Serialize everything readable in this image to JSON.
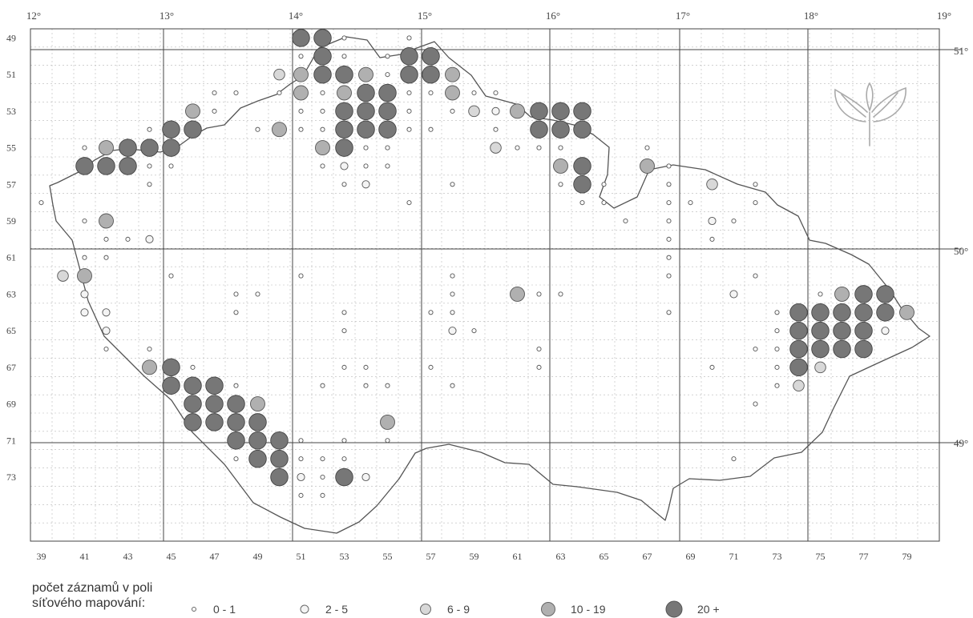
{
  "map": {
    "longitude_labels": [
      "12°",
      "13°",
      "14°",
      "15°",
      "16°",
      "17°",
      "18°",
      "19°"
    ],
    "latitude_labels": [
      "51°",
      "50°",
      "49°"
    ],
    "row_labels": [
      "49",
      "51",
      "53",
      "55",
      "57",
      "59",
      "61",
      "63",
      "65",
      "67",
      "69",
      "71",
      "73"
    ],
    "column_labels": [
      "39",
      "41",
      "43",
      "45",
      "47",
      "49",
      "51",
      "53",
      "55",
      "57",
      "59",
      "61",
      "63",
      "65",
      "67",
      "69",
      "71",
      "73",
      "75",
      "77",
      "79"
    ],
    "logo_icon": "leaf-plant-icon"
  },
  "legend": {
    "caption_line1": "počet záznamů v poli",
    "caption_line2": "síťového mapování:",
    "classes": [
      {
        "label": "0 - 1",
        "color": "#ffffff"
      },
      {
        "label": "2 - 5",
        "color": "#f4f4f4"
      },
      {
        "label": "6 - 9",
        "color": "#d8d8d8"
      },
      {
        "label": "10 - 19",
        "color": "#b0b0b0"
      },
      {
        "label": "20 +",
        "color": "#777777"
      }
    ]
  },
  "records": [
    [
      51,
      49,
      4
    ],
    [
      52,
      49,
      4
    ],
    [
      53,
      49,
      0
    ],
    [
      56,
      49,
      0
    ],
    [
      51,
      50,
      0
    ],
    [
      52,
      50,
      4
    ],
    [
      53,
      50,
      0
    ],
    [
      55,
      50,
      0
    ],
    [
      56,
      50,
      4
    ],
    [
      57,
      50,
      4
    ],
    [
      50,
      51,
      2
    ],
    [
      51,
      51,
      3
    ],
    [
      52,
      51,
      4
    ],
    [
      53,
      51,
      4
    ],
    [
      54,
      51,
      3
    ],
    [
      55,
      51,
      0
    ],
    [
      56,
      51,
      4
    ],
    [
      57,
      51,
      4
    ],
    [
      58,
      51,
      3
    ],
    [
      47,
      52,
      0
    ],
    [
      48,
      52,
      0
    ],
    [
      50,
      52,
      0
    ],
    [
      51,
      52,
      3
    ],
    [
      52,
      52,
      0
    ],
    [
      53,
      52,
      3
    ],
    [
      54,
      52,
      4
    ],
    [
      55,
      52,
      4
    ],
    [
      56,
      52,
      0
    ],
    [
      57,
      52,
      0
    ],
    [
      58,
      52,
      3
    ],
    [
      59,
      52,
      0
    ],
    [
      60,
      52,
      0
    ],
    [
      46,
      53,
      3
    ],
    [
      47,
      53,
      0
    ],
    [
      51,
      53,
      0
    ],
    [
      52,
      53,
      0
    ],
    [
      53,
      53,
      4
    ],
    [
      54,
      53,
      4
    ],
    [
      55,
      53,
      4
    ],
    [
      56,
      53,
      0
    ],
    [
      58,
      53,
      0
    ],
    [
      59,
      53,
      2
    ],
    [
      60,
      53,
      1
    ],
    [
      61,
      53,
      3
    ],
    [
      62,
      53,
      4
    ],
    [
      63,
      53,
      4
    ],
    [
      64,
      53,
      4
    ],
    [
      44,
      54,
      0
    ],
    [
      45,
      54,
      4
    ],
    [
      46,
      54,
      4
    ],
    [
      49,
      54,
      0
    ],
    [
      50,
      54,
      3
    ],
    [
      51,
      54,
      0
    ],
    [
      52,
      54,
      0
    ],
    [
      53,
      54,
      4
    ],
    [
      54,
      54,
      4
    ],
    [
      55,
      54,
      4
    ],
    [
      56,
      54,
      0
    ],
    [
      57,
      54,
      0
    ],
    [
      60,
      54,
      0
    ],
    [
      62,
      54,
      4
    ],
    [
      63,
      54,
      4
    ],
    [
      64,
      54,
      4
    ],
    [
      41,
      55,
      0
    ],
    [
      42,
      55,
      3
    ],
    [
      43,
      55,
      4
    ],
    [
      44,
      55,
      4
    ],
    [
      45,
      55,
      4
    ],
    [
      52,
      55,
      3
    ],
    [
      53,
      55,
      4
    ],
    [
      54,
      55,
      0
    ],
    [
      55,
      55,
      0
    ],
    [
      60,
      55,
      2
    ],
    [
      61,
      55,
      0
    ],
    [
      62,
      55,
      0
    ],
    [
      63,
      55,
      0
    ],
    [
      67,
      55,
      0
    ],
    [
      41,
      56,
      4
    ],
    [
      42,
      56,
      4
    ],
    [
      43,
      56,
      4
    ],
    [
      44,
      56,
      0
    ],
    [
      45,
      56,
      0
    ],
    [
      52,
      56,
      0
    ],
    [
      53,
      56,
      1
    ],
    [
      54,
      56,
      0
    ],
    [
      55,
      56,
      0
    ],
    [
      63,
      56,
      3
    ],
    [
      64,
      56,
      4
    ],
    [
      67,
      56,
      3
    ],
    [
      68,
      56,
      0
    ],
    [
      44,
      57,
      0
    ],
    [
      53,
      57,
      0
    ],
    [
      54,
      57,
      1
    ],
    [
      58,
      57,
      0
    ],
    [
      63,
      57,
      0
    ],
    [
      64,
      57,
      4
    ],
    [
      65,
      57,
      0
    ],
    [
      68,
      57,
      0
    ],
    [
      70,
      57,
      2
    ],
    [
      72,
      57,
      0
    ],
    [
      39,
      58,
      0
    ],
    [
      56,
      58,
      0
    ],
    [
      64,
      58,
      0
    ],
    [
      65,
      58,
      0
    ],
    [
      68,
      58,
      0
    ],
    [
      69,
      58,
      0
    ],
    [
      72,
      58,
      0
    ],
    [
      41,
      59,
      0
    ],
    [
      42,
      59,
      3
    ],
    [
      66,
      59,
      0
    ],
    [
      68,
      59,
      0
    ],
    [
      70,
      59,
      1
    ],
    [
      71,
      59,
      0
    ],
    [
      42,
      60,
      0
    ],
    [
      43,
      60,
      0
    ],
    [
      44,
      60,
      1
    ],
    [
      68,
      60,
      0
    ],
    [
      70,
      60,
      0
    ],
    [
      41,
      61,
      0
    ],
    [
      42,
      61,
      0
    ],
    [
      68,
      61,
      0
    ],
    [
      40,
      62,
      2
    ],
    [
      41,
      62,
      3
    ],
    [
      45,
      62,
      0
    ],
    [
      51,
      62,
      0
    ],
    [
      58,
      62,
      0
    ],
    [
      68,
      62,
      0
    ],
    [
      72,
      62,
      0
    ],
    [
      41,
      63,
      1
    ],
    [
      48,
      63,
      0
    ],
    [
      49,
      63,
      0
    ],
    [
      58,
      63,
      0
    ],
    [
      61,
      63,
      3
    ],
    [
      62,
      63,
      0
    ],
    [
      63,
      63,
      0
    ],
    [
      71,
      63,
      1
    ],
    [
      75,
      63,
      0
    ],
    [
      76,
      63,
      3
    ],
    [
      77,
      63,
      4
    ],
    [
      78,
      63,
      4
    ],
    [
      41,
      64,
      1
    ],
    [
      42,
      64,
      1
    ],
    [
      48,
      64,
      0
    ],
    [
      53,
      64,
      0
    ],
    [
      57,
      64,
      0
    ],
    [
      58,
      64,
      0
    ],
    [
      68,
      64,
      0
    ],
    [
      73,
      64,
      0
    ],
    [
      74,
      64,
      4
    ],
    [
      75,
      64,
      4
    ],
    [
      76,
      64,
      4
    ],
    [
      77,
      64,
      4
    ],
    [
      78,
      64,
      4
    ],
    [
      79,
      64,
      3
    ],
    [
      42,
      65,
      1
    ],
    [
      53,
      65,
      0
    ],
    [
      58,
      65,
      1
    ],
    [
      59,
      65,
      0
    ],
    [
      73,
      65,
      0
    ],
    [
      74,
      65,
      4
    ],
    [
      75,
      65,
      4
    ],
    [
      76,
      65,
      4
    ],
    [
      77,
      65,
      4
    ],
    [
      78,
      65,
      1
    ],
    [
      42,
      66,
      0
    ],
    [
      44,
      66,
      0
    ],
    [
      62,
      66,
      0
    ],
    [
      72,
      66,
      0
    ],
    [
      73,
      66,
      0
    ],
    [
      74,
      66,
      4
    ],
    [
      75,
      66,
      4
    ],
    [
      76,
      66,
      4
    ],
    [
      77,
      66,
      4
    ],
    [
      44,
      67,
      3
    ],
    [
      45,
      67,
      4
    ],
    [
      46,
      67,
      0
    ],
    [
      53,
      67,
      0
    ],
    [
      54,
      67,
      0
    ],
    [
      57,
      67,
      0
    ],
    [
      62,
      67,
      0
    ],
    [
      70,
      67,
      0
    ],
    [
      73,
      67,
      0
    ],
    [
      74,
      67,
      4
    ],
    [
      75,
      67,
      2
    ],
    [
      45,
      68,
      4
    ],
    [
      46,
      68,
      4
    ],
    [
      47,
      68,
      4
    ],
    [
      48,
      68,
      0
    ],
    [
      52,
      68,
      0
    ],
    [
      54,
      68,
      0
    ],
    [
      55,
      68,
      0
    ],
    [
      58,
      68,
      0
    ],
    [
      73,
      68,
      0
    ],
    [
      74,
      68,
      2
    ],
    [
      46,
      69,
      4
    ],
    [
      47,
      69,
      4
    ],
    [
      48,
      69,
      4
    ],
    [
      49,
      69,
      3
    ],
    [
      72,
      69,
      0
    ],
    [
      46,
      70,
      4
    ],
    [
      47,
      70,
      4
    ],
    [
      48,
      70,
      4
    ],
    [
      49,
      70,
      4
    ],
    [
      55,
      70,
      3
    ],
    [
      48,
      71,
      4
    ],
    [
      49,
      71,
      4
    ],
    [
      50,
      71,
      4
    ],
    [
      51,
      71,
      0
    ],
    [
      53,
      71,
      0
    ],
    [
      55,
      71,
      0
    ],
    [
      48,
      72,
      0
    ],
    [
      49,
      72,
      4
    ],
    [
      50,
      72,
      4
    ],
    [
      51,
      72,
      0
    ],
    [
      52,
      72,
      0
    ],
    [
      53,
      72,
      0
    ],
    [
      71,
      72,
      0
    ],
    [
      50,
      73,
      4
    ],
    [
      51,
      73,
      1
    ],
    [
      52,
      73,
      0
    ],
    [
      53,
      73,
      4
    ],
    [
      54,
      73,
      1
    ],
    [
      51,
      74,
      0
    ],
    [
      52,
      74,
      0
    ]
  ]
}
